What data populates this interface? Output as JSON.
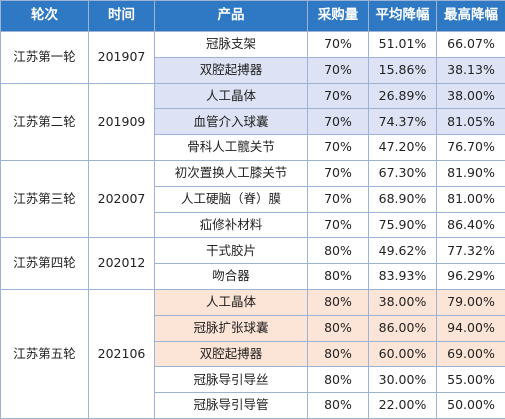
{
  "headers": {
    "round": "轮次",
    "time": "时间",
    "product": "产品",
    "rate": "采购量",
    "avg": "平均降幅",
    "max": "最高降幅"
  },
  "groups": [
    {
      "round": "江苏第一轮",
      "time": "201907",
      "rows": [
        {
          "product": "冠脉支架",
          "rate": "70%",
          "avg": "51.01%",
          "max": "66.07%",
          "highlight": ""
        },
        {
          "product": "双腔起搏器",
          "rate": "70%",
          "avg": "15.86%",
          "max": "38.13%",
          "highlight": "blue"
        }
      ]
    },
    {
      "round": "江苏第二轮",
      "time": "201909",
      "rows": [
        {
          "product": "人工晶体",
          "rate": "70%",
          "avg": "26.89%",
          "max": "38.00%",
          "highlight": "blue"
        },
        {
          "product": "血管介入球囊",
          "rate": "70%",
          "avg": "74.37%",
          "max": "81.05%",
          "highlight": "blue"
        },
        {
          "product": "骨科人工髋关节",
          "rate": "70%",
          "avg": "47.20%",
          "max": "76.70%",
          "highlight": ""
        }
      ]
    },
    {
      "round": "江苏第三轮",
      "time": "202007",
      "rows": [
        {
          "product": "初次置换人工膝关节",
          "rate": "70%",
          "avg": "67.30%",
          "max": "81.90%",
          "highlight": ""
        },
        {
          "product": "人工硬脑（脊）膜",
          "rate": "70%",
          "avg": "68.90%",
          "max": "81.00%",
          "highlight": ""
        },
        {
          "product": "疝修补材料",
          "rate": "70%",
          "avg": "75.90%",
          "max": "86.40%",
          "highlight": ""
        }
      ]
    },
    {
      "round": "江苏第四轮",
      "time": "202012",
      "rows": [
        {
          "product": "干式胶片",
          "rate": "80%",
          "avg": "49.62%",
          "max": "77.32%",
          "highlight": ""
        },
        {
          "product": "吻合器",
          "rate": "80%",
          "avg": "83.93%",
          "max": "96.29%",
          "highlight": ""
        }
      ]
    },
    {
      "round": "江苏第五轮",
      "time": "202106",
      "rows": [
        {
          "product": "人工晶体",
          "rate": "80%",
          "avg": "38.00%",
          "max": "79.00%",
          "highlight": "peach"
        },
        {
          "product": "冠脉扩张球囊",
          "rate": "80%",
          "avg": "86.00%",
          "max": "94.00%",
          "highlight": "peach"
        },
        {
          "product": "双腔起搏器",
          "rate": "80%",
          "avg": "60.00%",
          "max": "69.00%",
          "highlight": "peach"
        },
        {
          "product": "冠脉导引导丝",
          "rate": "80%",
          "avg": "30.00%",
          "max": "55.00%",
          "highlight": ""
        },
        {
          "product": "冠脉导引导管",
          "rate": "80%",
          "avg": "22.00%",
          "max": "50.00%",
          "highlight": ""
        }
      ]
    }
  ],
  "colors": {
    "header_bg": "#2f79c4",
    "header_text": "#ffffff",
    "grid": "#9db3d6",
    "highlight_blue": "#dde3f4",
    "highlight_peach": "#fce4d6"
  }
}
